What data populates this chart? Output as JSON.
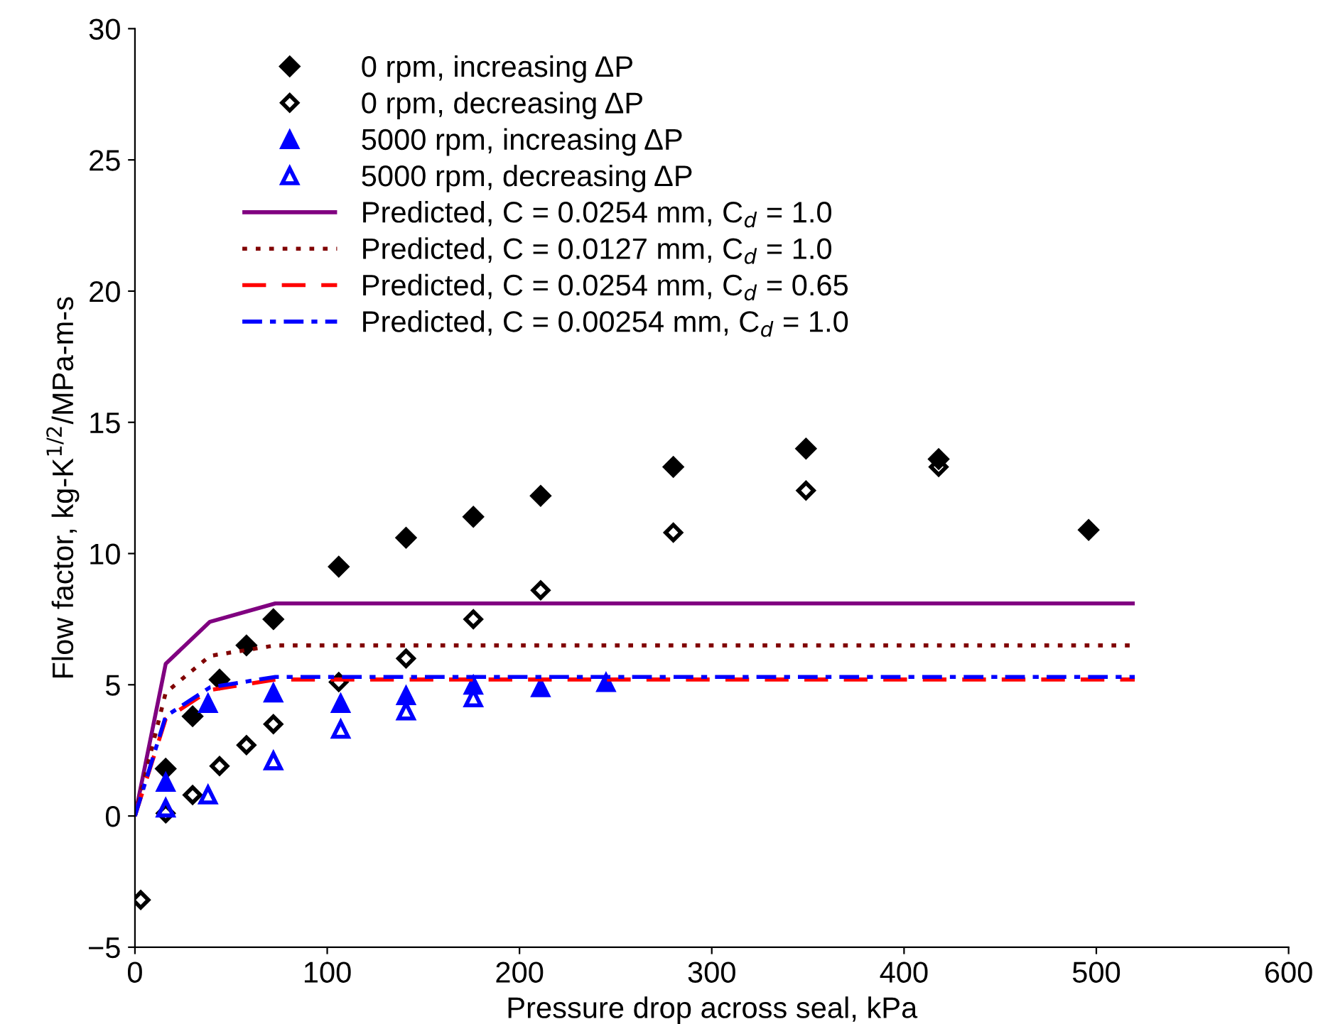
{
  "chart_data": {
    "type": "scatter",
    "xlabel": "Pressure drop across seal, kPa",
    "ylabel": "Flow factor, kg-K$^{1/2}$/MPa-m-s",
    "xlim": [
      0,
      600
    ],
    "xticks": [
      0,
      100,
      200,
      300,
      400,
      500,
      600
    ],
    "ylim": [
      -5,
      30
    ],
    "yticks": [
      -5,
      0,
      5,
      10,
      15,
      20,
      25,
      30
    ],
    "grid": false,
    "legend": "top left",
    "series": [
      {
        "name": "0 rpm, increasing ΔP",
        "marker": "diamond",
        "color": "#000000",
        "x": [
          16,
          30,
          44,
          58,
          72,
          106,
          141,
          176,
          211,
          280,
          349,
          418,
          496
        ],
        "values": [
          1.8,
          3.8,
          5.2,
          6.5,
          7.5,
          9.5,
          10.6,
          11.4,
          12.2,
          13.3,
          14.0,
          13.6,
          10.9
        ]
      },
      {
        "name": "0 rpm, decreasing ΔP",
        "marker": "diamond-open",
        "color": "#000000",
        "x": [
          3,
          16,
          30,
          44,
          58,
          72,
          106,
          141,
          176,
          211,
          280,
          349,
          418
        ],
        "values": [
          -3.2,
          0.1,
          0.8,
          1.9,
          2.7,
          3.5,
          5.1,
          6.0,
          7.5,
          8.6,
          10.8,
          12.4,
          13.3
        ]
      },
      {
        "name": "5000 rpm, increasing ΔP",
        "marker": "triangle",
        "color": "#0000ff",
        "x": [
          16,
          38,
          72,
          107,
          141,
          176,
          211,
          245
        ],
        "values": [
          1.3,
          4.3,
          4.7,
          4.3,
          4.6,
          5.0,
          4.9,
          5.1
        ]
      },
      {
        "name": "5000 rpm, decreasing ΔP",
        "marker": "triangle-open",
        "color": "#0000ff",
        "x": [
          16,
          38,
          72,
          107,
          141,
          176
        ],
        "values": [
          0.3,
          0.8,
          2.1,
          3.3,
          4.0,
          4.5
        ]
      },
      {
        "name": "Predicted, C = 0.0254 mm, C$_{d}$ = 1.0",
        "type": "line",
        "line_style": "solid",
        "color": "#800080",
        "x": [
          0,
          16,
          39,
          73,
          520
        ],
        "values": [
          0,
          5.8,
          7.4,
          8.1,
          8.1
        ]
      },
      {
        "name": "Predicted, C = 0.0127 mm, C$_{d}$ = 1.0",
        "type": "line",
        "line_style": "dotted",
        "color": "#800000",
        "x": [
          0,
          16,
          39,
          73,
          520
        ],
        "values": [
          0,
          4.7,
          6.1,
          6.5,
          6.5
        ]
      },
      {
        "name": "Predicted, C = 0.0254 mm, C$_{d}$ = 0.65",
        "type": "line",
        "line_style": "dashed",
        "color": "#ff0000",
        "x": [
          0,
          16,
          39,
          73,
          520
        ],
        "values": [
          0,
          3.7,
          4.8,
          5.2,
          5.2
        ]
      },
      {
        "name": "Predicted, C = 0.00254 mm, C$_{d}$ = 1.0",
        "type": "line",
        "line_style": "dashdot",
        "color": "#0000ff",
        "x": [
          0,
          16,
          39,
          73,
          520
        ],
        "values": [
          0,
          3.8,
          4.9,
          5.3,
          5.3
        ]
      }
    ]
  }
}
